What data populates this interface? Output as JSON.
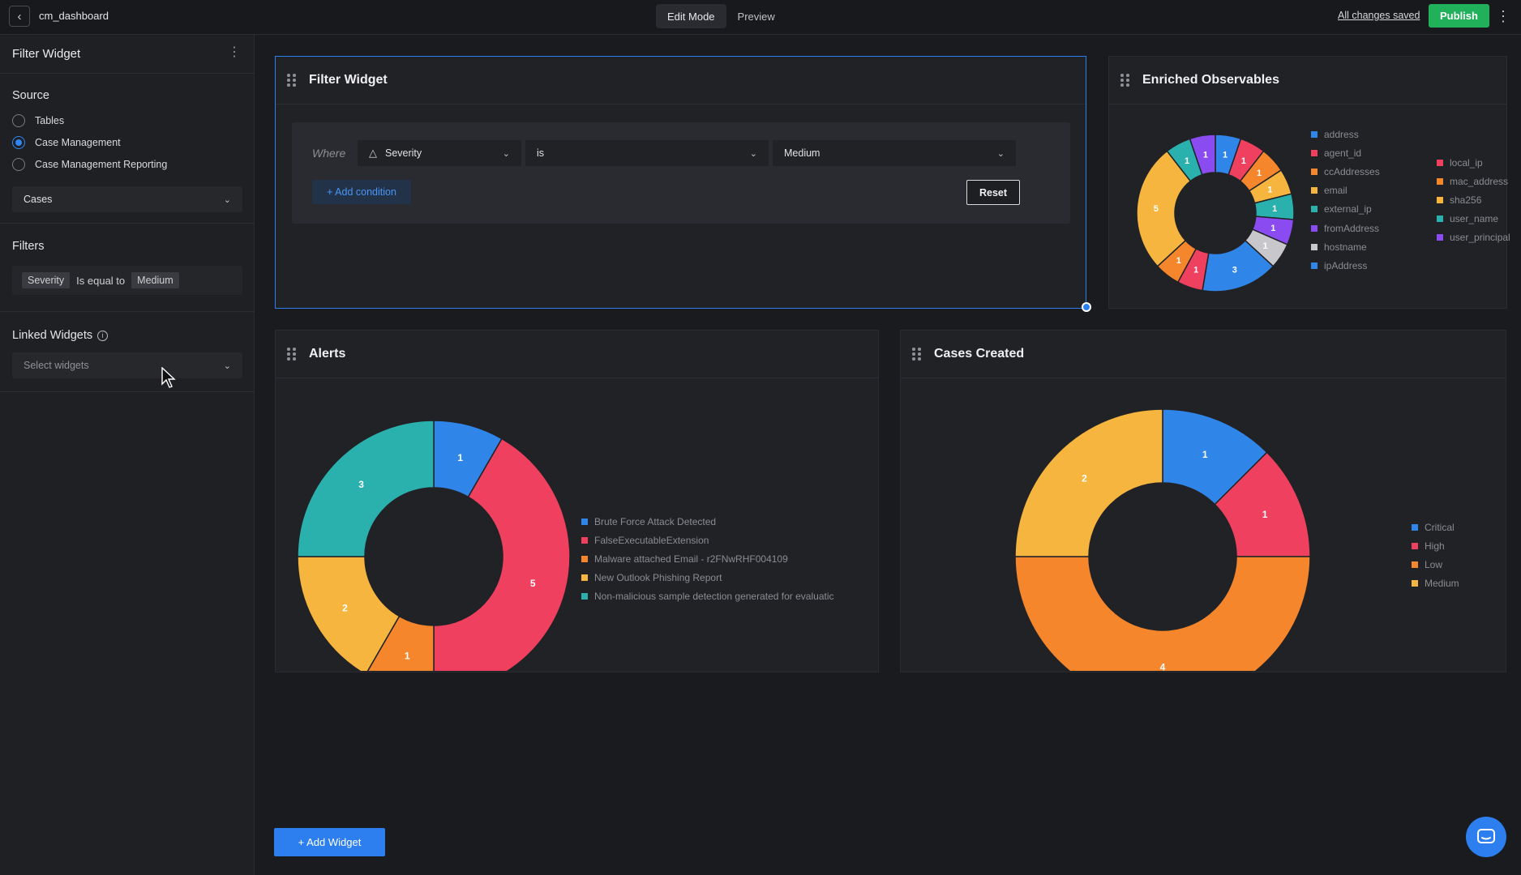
{
  "topbar": {
    "title": "cm_dashboard",
    "modes": [
      "Edit Mode",
      "Preview"
    ],
    "active_mode": "Edit Mode",
    "saved_text": "All changes saved",
    "publish_label": "Publish"
  },
  "sidebar": {
    "title": "Filter Widget",
    "source_label": "Source",
    "sources": [
      "Tables",
      "Case Management",
      "Case Management Reporting"
    ],
    "selected_source": "Case Management",
    "table_select": "Cases",
    "filters_label": "Filters",
    "filter": {
      "field": "Severity",
      "operator": "Is equal to",
      "value": "Medium"
    },
    "linked_label": "Linked Widgets",
    "linked_placeholder": "Select widgets"
  },
  "filter_widget": {
    "title": "Filter Widget",
    "where": "Where",
    "field": "Severity",
    "operator": "is",
    "value": "Medium",
    "add_condition": "+ Add condition",
    "reset": "Reset"
  },
  "add_widget_label": "+ Add Widget",
  "chart_data": [
    {
      "type": "pie",
      "title": "Enriched Observables",
      "donut": true,
      "categories": [
        "address",
        "agent_id",
        "ccAddresses",
        "email",
        "external_ip",
        "fromAddress",
        "hostname",
        "ipAddress",
        "local_ip",
        "mac_address",
        "sha256",
        "user_name",
        "user_principal"
      ],
      "colors": [
        "#2f86e8",
        "#f0405f",
        "#f5862b",
        "#f6b53e",
        "#2ab0ad",
        "#8a4cf0",
        "#c7c7cc",
        "#2f86e8",
        "#f0405f",
        "#f5862b",
        "#f6b53e",
        "#2ab0ad",
        "#8a4cf0"
      ],
      "slices": [
        {
          "label": "address",
          "value": 1,
          "color": "#2f86e8"
        },
        {
          "label": "agent_id",
          "value": 1,
          "color": "#f0405f"
        },
        {
          "label": "ccAddresses",
          "value": 1,
          "color": "#f5862b"
        },
        {
          "label": "email",
          "value": 1,
          "color": "#f6b53e"
        },
        {
          "label": "external_ip",
          "value": 1,
          "color": "#2ab0ad"
        },
        {
          "label": "fromAddress",
          "value": 1,
          "color": "#8a4cf0"
        },
        {
          "label": "hostname",
          "value": 1,
          "color": "#c7c7cc"
        },
        {
          "label": "ipAddress",
          "value": 3,
          "color": "#2f86e8"
        },
        {
          "label": "local_ip",
          "value": 1,
          "color": "#f0405f"
        },
        {
          "label": "mac_address",
          "value": 1,
          "color": "#f5862b"
        },
        {
          "label": "sha256",
          "value": 5,
          "color": "#f6b53e"
        },
        {
          "label": "user_name",
          "value": 1,
          "color": "#2ab0ad"
        },
        {
          "label": "user_principal",
          "value": 1,
          "color": "#8a4cf0"
        }
      ]
    },
    {
      "type": "pie",
      "title": "Alerts",
      "donut": true,
      "categories": [
        "Brute Force Attack Detected",
        "FalseExecutableExtension",
        "Malware attached Email - r2FNwRHF004109",
        "New Outlook Phishing Report",
        "Non-malicious sample detection generated for evaluatic"
      ],
      "colors": [
        "#2f86e8",
        "#f0405f",
        "#f5862b",
        "#f6b53e",
        "#2ab0ad"
      ],
      "values": [
        1,
        5,
        1,
        2,
        3
      ]
    },
    {
      "type": "pie",
      "title": "Cases Created",
      "donut": true,
      "categories": [
        "Critical",
        "High",
        "Low",
        "Medium"
      ],
      "colors": [
        "#2f86e8",
        "#f0405f",
        "#f5862b",
        "#f6b53e"
      ],
      "values": [
        1,
        1,
        4,
        2
      ]
    }
  ]
}
